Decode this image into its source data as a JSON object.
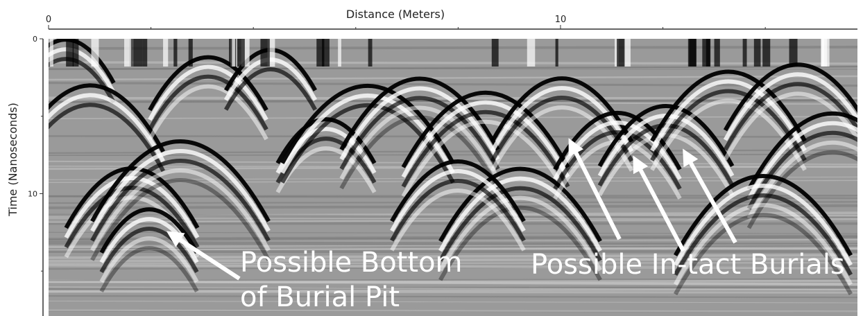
{
  "chart_data": {
    "type": "radargram",
    "xlabel": "Distance (Meters)",
    "ylabel": "Time (Nanoseconds)",
    "xlim": [
      0,
      15.8
    ],
    "xticks": [
      0,
      10
    ],
    "xminorticks": [
      2,
      4,
      6,
      8,
      12,
      14
    ],
    "ylim": [
      0,
      17.9
    ],
    "yticks": [
      0,
      10
    ],
    "yminorticks": [
      5,
      15
    ],
    "y_inverted": true,
    "annotations": [
      {
        "lines": [
          "Possible Bottom",
          "of Burial Pit"
        ]
      },
      {
        "lines": [
          "Possible In-tact Burials"
        ]
      }
    ]
  }
}
